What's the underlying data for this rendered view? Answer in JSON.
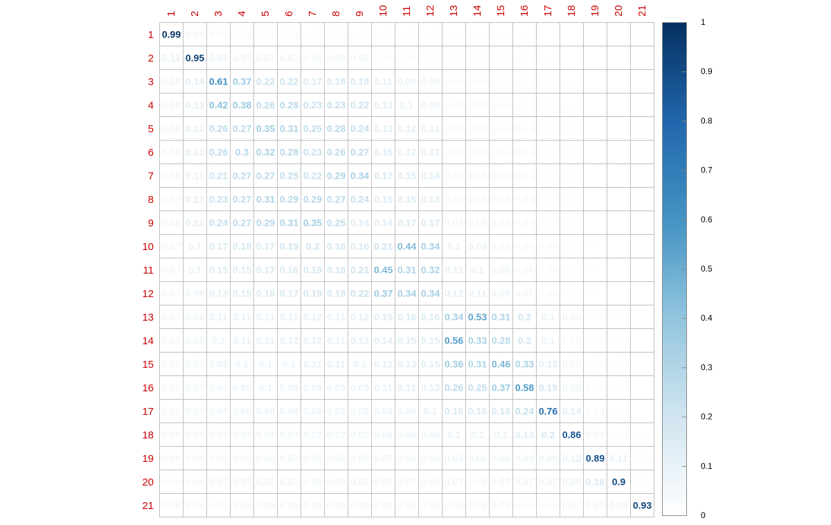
{
  "chart_data": {
    "type": "heatmap",
    "title": "",
    "xlabel": "",
    "ylabel": "",
    "row_labels": [
      "1",
      "2",
      "3",
      "4",
      "5",
      "6",
      "7",
      "8",
      "9",
      "10",
      "11",
      "12",
      "13",
      "14",
      "15",
      "16",
      "17",
      "18",
      "19",
      "20",
      "21"
    ],
    "col_labels": [
      "1",
      "2",
      "3",
      "4",
      "5",
      "6",
      "7",
      "8",
      "9",
      "10",
      "11",
      "12",
      "13",
      "14",
      "15",
      "16",
      "17",
      "18",
      "19",
      "20",
      "21"
    ],
    "values": [
      [
        0.99,
        0.06,
        0.05,
        0.03,
        0.03,
        0.03,
        0.02,
        0.03,
        0.02,
        0.02,
        0.02,
        0.02,
        0.01,
        0.01,
        0.01,
        0.01,
        0,
        0,
        0,
        0,
        0
      ],
      [
        0.11,
        0.95,
        0.09,
        0.07,
        0.07,
        0.07,
        0.06,
        0.06,
        0.06,
        0.04,
        0.04,
        0.03,
        0.02,
        0.02,
        0.02,
        0.02,
        0.01,
        0,
        0,
        0,
        0
      ],
      [
        0.08,
        0.14,
        0.61,
        0.37,
        0.22,
        0.22,
        0.17,
        0.18,
        0.18,
        0.11,
        0.09,
        0.08,
        0.04,
        0.04,
        0.03,
        0.03,
        0.02,
        0.01,
        0,
        0,
        0
      ],
      [
        0.08,
        0.13,
        0.42,
        0.38,
        0.26,
        0.28,
        0.23,
        0.23,
        0.22,
        0.13,
        0.1,
        0.09,
        0.05,
        0.05,
        0.04,
        0.03,
        0.02,
        0.01,
        0,
        0,
        0
      ],
      [
        0.08,
        0.12,
        0.26,
        0.27,
        0.35,
        0.31,
        0.25,
        0.28,
        0.24,
        0.13,
        0.12,
        0.11,
        0.05,
        0.05,
        0.04,
        0.04,
        0.02,
        0.01,
        0,
        0,
        0
      ],
      [
        0.08,
        0.13,
        0.26,
        0.3,
        0.32,
        0.28,
        0.23,
        0.26,
        0.27,
        0.15,
        0.12,
        0.12,
        0.05,
        0.05,
        0.04,
        0.04,
        0.02,
        0.02,
        0,
        0,
        0
      ],
      [
        0.08,
        0.11,
        0.21,
        0.27,
        0.27,
        0.25,
        0.22,
        0.29,
        0.34,
        0.17,
        0.15,
        0.14,
        0.06,
        0.06,
        0.05,
        0.04,
        0.03,
        0.02,
        0,
        0,
        0
      ],
      [
        0.07,
        0.12,
        0.23,
        0.27,
        0.31,
        0.29,
        0.29,
        0.27,
        0.24,
        0.15,
        0.15,
        0.13,
        0.06,
        0.06,
        0.05,
        0.04,
        0.03,
        0.02,
        0,
        0,
        0
      ],
      [
        0.08,
        0.12,
        0.24,
        0.27,
        0.29,
        0.31,
        0.35,
        0.25,
        0.14,
        0.14,
        0.17,
        0.17,
        0.07,
        0.06,
        0.06,
        0.04,
        0.03,
        0.02,
        0,
        0,
        0
      ],
      [
        0.07,
        0.1,
        0.17,
        0.18,
        0.17,
        0.19,
        0.2,
        0.18,
        0.16,
        0.21,
        0.44,
        0.34,
        0.1,
        0.09,
        0.06,
        0.05,
        0.04,
        0.02,
        0.01,
        0,
        0
      ],
      [
        0.07,
        0.1,
        0.15,
        0.15,
        0.17,
        0.16,
        0.19,
        0.18,
        0.21,
        0.45,
        0.31,
        0.32,
        0.11,
        0.1,
        0.08,
        0.06,
        0.04,
        0.02,
        0.01,
        0,
        0
      ],
      [
        0.07,
        0.09,
        0.13,
        0.15,
        0.16,
        0.17,
        0.19,
        0.18,
        0.22,
        0.37,
        0.34,
        0.34,
        0.12,
        0.11,
        0.09,
        0.07,
        0.04,
        0.02,
        0.01,
        0,
        0
      ],
      [
        0.07,
        0.08,
        0.11,
        0.11,
        0.11,
        0.11,
        0.12,
        0.11,
        0.12,
        0.15,
        0.16,
        0.16,
        0.34,
        0.53,
        0.31,
        0.2,
        0.1,
        0.06,
        0.02,
        0.01,
        0
      ],
      [
        0.07,
        0.08,
        0.1,
        0.11,
        0.11,
        0.12,
        0.12,
        0.11,
        0.12,
        0.14,
        0.15,
        0.15,
        0.56,
        0.33,
        0.28,
        0.2,
        0.1,
        0.05,
        0.02,
        0.01,
        0
      ],
      [
        0.06,
        0.07,
        0.09,
        0.1,
        0.1,
        0.1,
        0.11,
        0.11,
        0.1,
        0.12,
        0.13,
        0.15,
        0.36,
        0.31,
        0.46,
        0.33,
        0.13,
        0.06,
        0.02,
        0.01,
        0
      ],
      [
        0.06,
        0.07,
        0.08,
        0.09,
        0.1,
        0.09,
        0.09,
        0.09,
        0.09,
        0.11,
        0.12,
        0.13,
        0.26,
        0.25,
        0.37,
        0.58,
        0.19,
        0.08,
        0.03,
        0.02,
        0
      ],
      [
        0.06,
        0.07,
        0.08,
        0.08,
        0.09,
        0.09,
        0.09,
        0.08,
        0.08,
        0.09,
        0.09,
        0.1,
        0.16,
        0.16,
        0.18,
        0.24,
        0.76,
        0.14,
        0.04,
        0.02,
        0
      ],
      [
        0.06,
        0.06,
        0.07,
        0.07,
        0.07,
        0.07,
        0.07,
        0.07,
        0.07,
        0.08,
        0.08,
        0.08,
        0.1,
        0.1,
        0.1,
        0.13,
        0.2,
        0.86,
        0.07,
        0.03,
        0.01
      ],
      [
        0.06,
        0.06,
        0.06,
        0.06,
        0.06,
        0.07,
        0.06,
        0.06,
        0.06,
        0.07,
        0.06,
        0.06,
        0.08,
        0.08,
        0.08,
        0.08,
        0.09,
        0.12,
        0.89,
        0.11,
        0.03
      ],
      [
        0.05,
        0.06,
        0.07,
        0.07,
        0.07,
        0.07,
        0.06,
        0.06,
        0.07,
        0.07,
        0.07,
        0.06,
        0.07,
        0.06,
        0.07,
        0.07,
        0.07,
        0.09,
        0.16,
        0.9,
        0.02
      ],
      [
        0.06,
        0.06,
        0.05,
        0.06,
        0.06,
        0.06,
        0.06,
        0.06,
        0.06,
        0.06,
        0.06,
        0.06,
        0.06,
        0.06,
        0.06,
        0.05,
        0.05,
        0.07,
        0.07,
        0.08,
        0.93
      ]
    ],
    "colorbar": {
      "range": [
        0,
        1
      ],
      "ticks": [
        0,
        0.1,
        0.2,
        0.3,
        0.4,
        0.5,
        0.6,
        0.7,
        0.8,
        0.9,
        1
      ],
      "tick_labels": [
        "0",
        "0.1",
        "0.2",
        "0.3",
        "0.4",
        "0.5",
        "0.6",
        "0.7",
        "0.8",
        "0.9",
        "1"
      ],
      "colors": [
        "#ffffff",
        "#d1e5f0",
        "#92c5de",
        "#4393c3",
        "#2166ac",
        "#053061"
      ]
    },
    "label_color": "#cc0000",
    "grid": true,
    "legend": "right"
  }
}
